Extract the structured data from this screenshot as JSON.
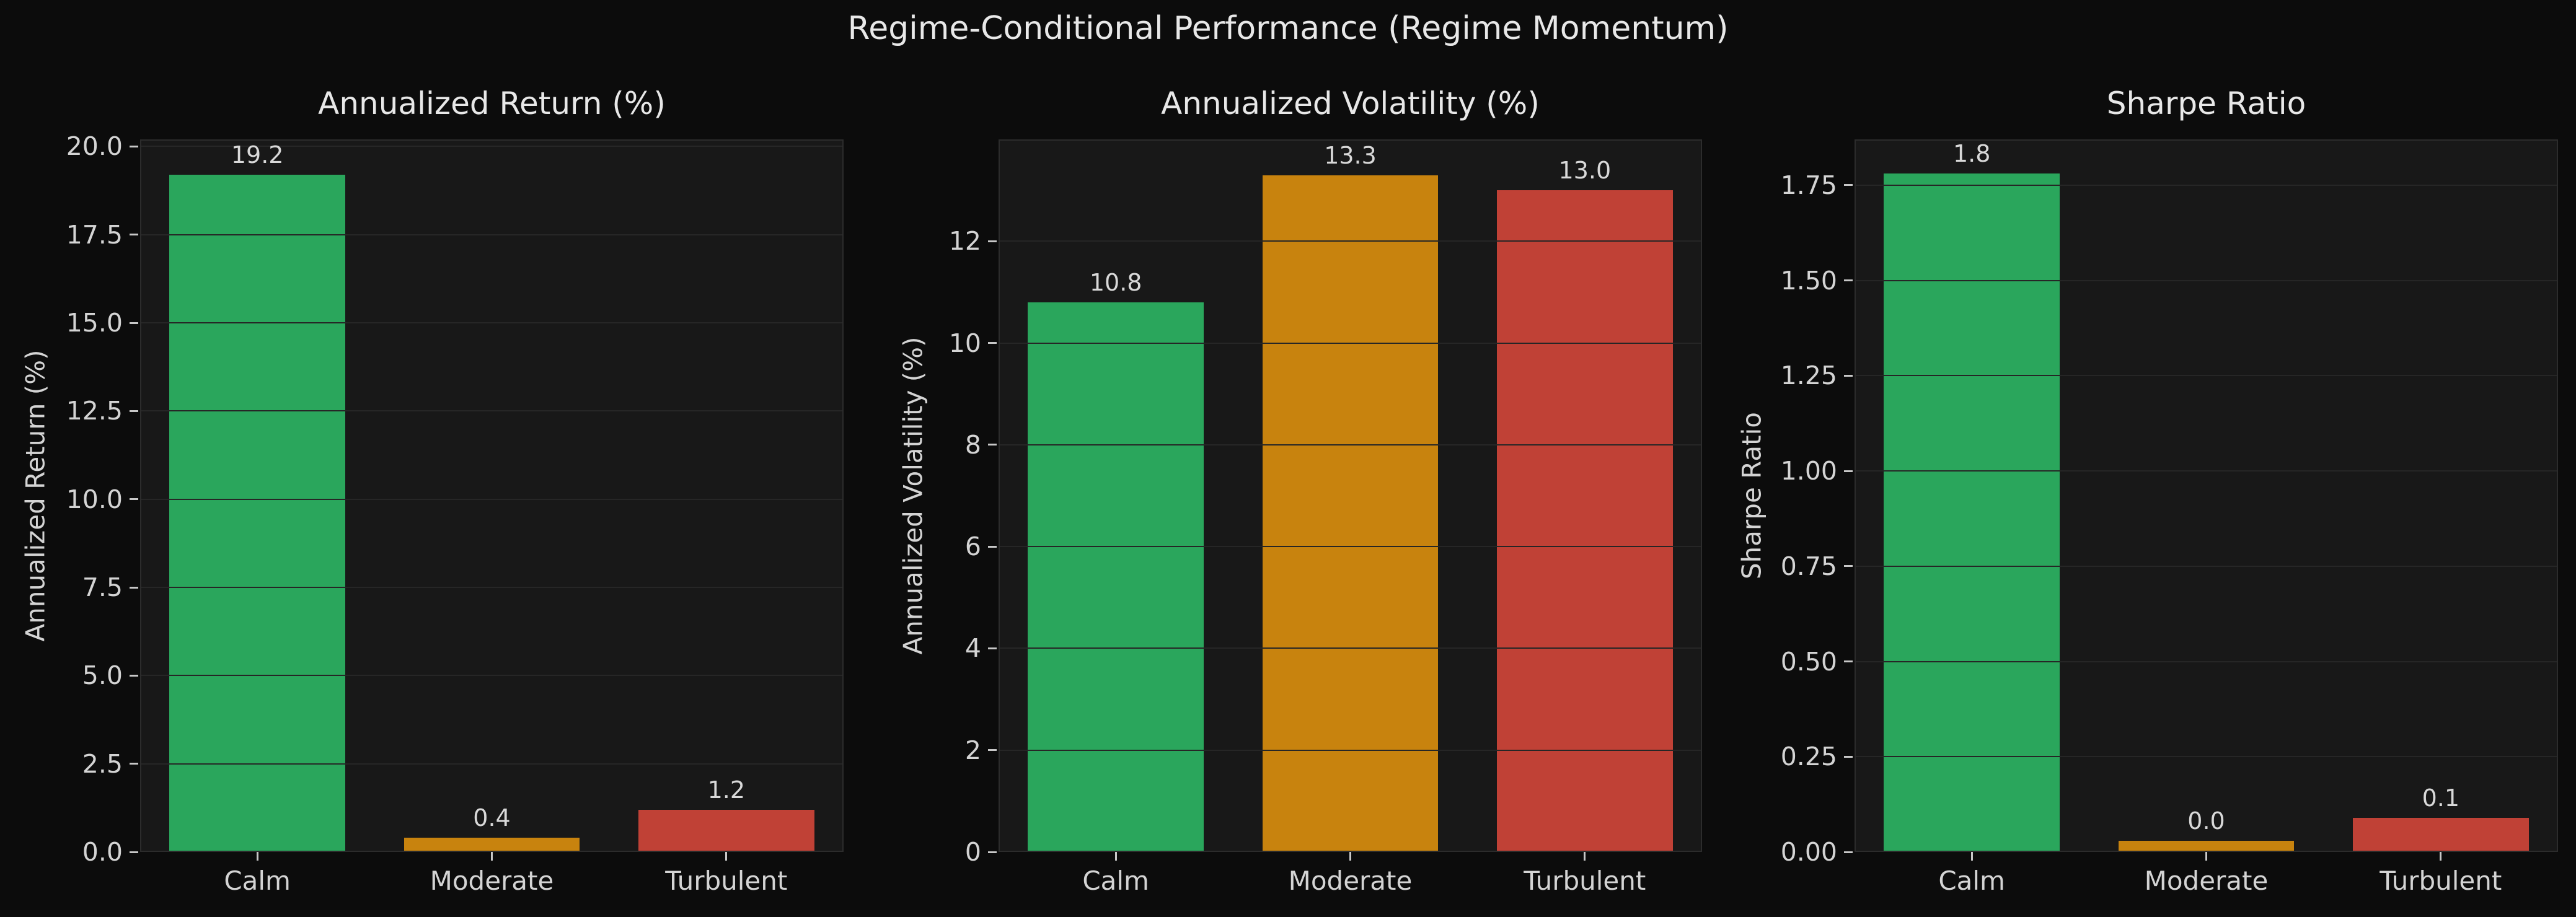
{
  "figure": {
    "suptitle": "Regime-Conditional Performance (Regime Momentum)"
  },
  "colors": {
    "figure_bg": "#0c0c0c",
    "axes_bg": "#181818",
    "grid": "#262626",
    "spine": "#2c2c2c",
    "tick_mark": "#c8c8c8",
    "title_text": "#e8e8e8",
    "label_text": "#d4d4d4",
    "bar_calm": "#2aa65c",
    "bar_moderate": "#c8830e",
    "bar_turbulent": "#c04136"
  },
  "chart_data": [
    {
      "type": "bar",
      "title": "Annualized Return (%)",
      "xlabel": "",
      "ylabel": "Annualized Return (%)",
      "categories": [
        "Calm",
        "Moderate",
        "Turbulent"
      ],
      "values": [
        19.2,
        0.4,
        1.2
      ],
      "bar_labels": [
        "19.2",
        "0.4",
        "1.2"
      ],
      "bar_colors": [
        "#2aa65c",
        "#c8830e",
        "#c04136"
      ],
      "ylim": [
        0,
        20.2
      ],
      "ytick_values": [
        0,
        2.5,
        5,
        7.5,
        10,
        12.5,
        15,
        17.5,
        20
      ],
      "ytick_labels": [
        "0.0",
        "2.5",
        "5.0",
        "7.5",
        "10.0",
        "12.5",
        "15.0",
        "17.5",
        "20.0"
      ],
      "grid": true,
      "legend": false
    },
    {
      "type": "bar",
      "title": "Annualized Volatility (%)",
      "xlabel": "",
      "ylabel": "Annualized Volatility (%)",
      "categories": [
        "Calm",
        "Moderate",
        "Turbulent"
      ],
      "values": [
        10.8,
        13.3,
        13.0
      ],
      "bar_labels": [
        "10.8",
        "13.3",
        "13.0"
      ],
      "bar_colors": [
        "#2aa65c",
        "#c8830e",
        "#c04136"
      ],
      "ylim": [
        0,
        14.0
      ],
      "ytick_values": [
        0,
        2,
        4,
        6,
        8,
        10,
        12
      ],
      "ytick_labels": [
        "0",
        "2",
        "4",
        "6",
        "8",
        "10",
        "12"
      ],
      "grid": true,
      "legend": false
    },
    {
      "type": "bar",
      "title": "Sharpe Ratio",
      "xlabel": "",
      "ylabel": "Sharpe Ratio",
      "categories": [
        "Calm",
        "Moderate",
        "Turbulent"
      ],
      "values": [
        1.78,
        0.03,
        0.09
      ],
      "bar_labels": [
        "1.8",
        "0.0",
        "0.1"
      ],
      "bar_colors": [
        "#2aa65c",
        "#c8830e",
        "#c04136"
      ],
      "ylim": [
        0,
        1.87
      ],
      "ytick_values": [
        0,
        0.25,
        0.5,
        0.75,
        1.0,
        1.25,
        1.5,
        1.75
      ],
      "ytick_labels": [
        "0.00",
        "0.25",
        "0.50",
        "0.75",
        "1.00",
        "1.25",
        "1.50",
        "1.75"
      ],
      "grid": true,
      "legend": false
    }
  ]
}
